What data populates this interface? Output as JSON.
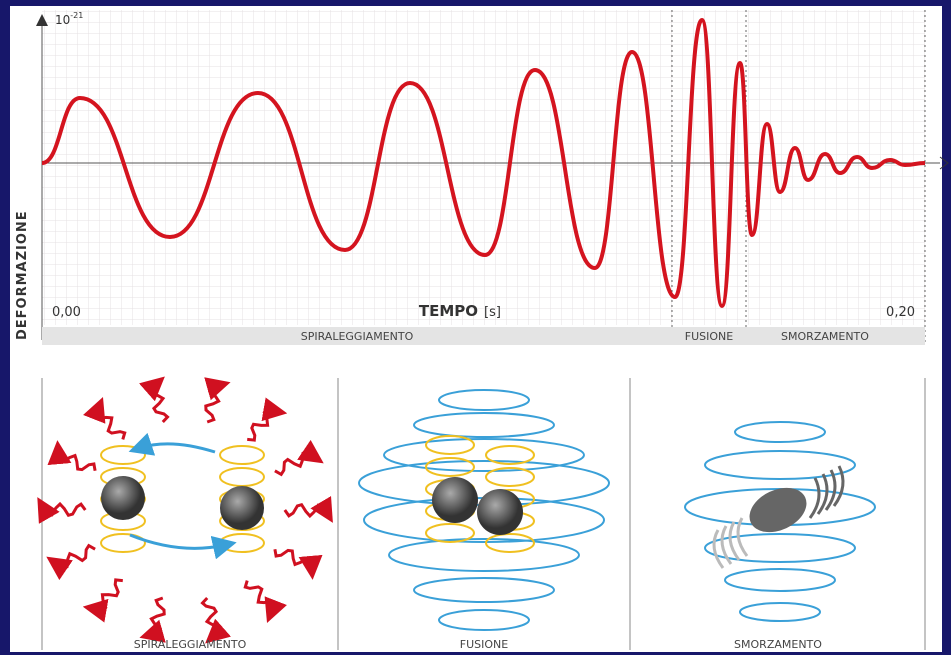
{
  "axis": {
    "y_unit": "10",
    "y_exponent": "-21",
    "y_label": "DEFORMAZIONE",
    "x_label": "TEMPO",
    "x_unit": "[s]",
    "x_start": "0,00",
    "x_end": "0,20"
  },
  "phases": [
    "SPIRALEGGIAMENTO",
    "FUSIONE",
    "SMORZAMENTO"
  ],
  "panels": [
    "SPIRALEGGIAMENTO",
    "FUSIONE",
    "SMORZAMENTO"
  ]
}
